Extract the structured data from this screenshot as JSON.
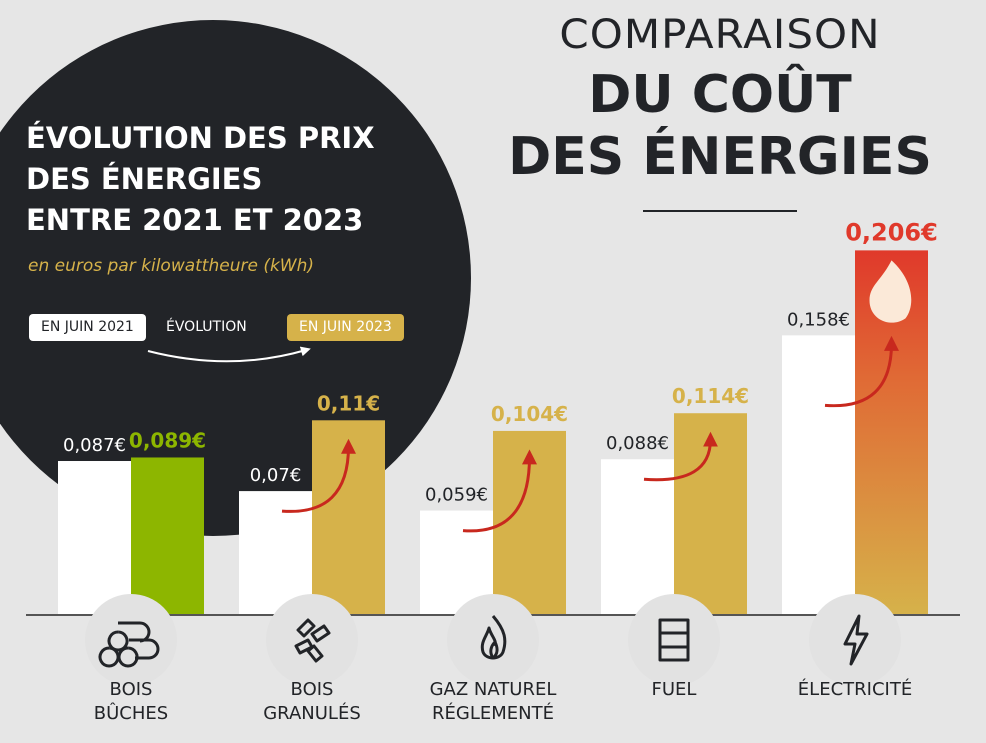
{
  "header": {
    "line1": "COMPARAISON",
    "line2": "DU COÛT",
    "line3": "DES ÉNERGIES"
  },
  "panel": {
    "title_lines": [
      "ÉVOLUTION DES PRIX",
      "DES ÉNERGIES",
      "ENTRE 2021 ET 2023"
    ],
    "unit": "en euros par kilowattheure (kWh)",
    "legend": {
      "from": "EN JUIN 2021",
      "middle": "ÉVOLUTION",
      "to": "EN JUIN 2023"
    }
  },
  "colors": {
    "dark": "#222428",
    "white": "#ffffff",
    "gold": "#d6b24a",
    "green": "#8db600",
    "red": "#e0392b",
    "arrow": "#c8281e",
    "background": "#e6e6e6"
  },
  "chart_data": {
    "type": "bar",
    "unit": "€/kWh",
    "categories": [
      {
        "lines": [
          "BOIS",
          "BÛCHES"
        ],
        "icon": "logs-icon"
      },
      {
        "lines": [
          "BOIS",
          "GRANULÉS"
        ],
        "icon": "pellets-icon"
      },
      {
        "lines": [
          "GAZ NATUREL",
          "RÉGLEMENTÉ"
        ],
        "icon": "flame-icon"
      },
      {
        "lines": [
          "FUEL"
        ],
        "icon": "barrel-icon"
      },
      {
        "lines": [
          "ÉLECTRICITÉ"
        ],
        "icon": "lightning-icon"
      }
    ],
    "series": [
      {
        "name": "EN JUIN 2021",
        "values": [
          0.087,
          0.07,
          0.059,
          0.088,
          0.158
        ],
        "labels": [
          "0,087€",
          "0,07€",
          "0,059€",
          "0,088€",
          "0,158€"
        ]
      },
      {
        "name": "EN JUIN 2023",
        "values": [
          0.089,
          0.11,
          0.104,
          0.114,
          0.206
        ],
        "labels": [
          "0,089€",
          "0,11€",
          "0,104€",
          "0,114€",
          "0,206€"
        ]
      }
    ],
    "highlight_colors": [
      "#8db600",
      "#d6b24a",
      "#d6b24a",
      "#d6b24a",
      "gradient-red"
    ],
    "ylim": [
      0,
      0.21
    ]
  }
}
